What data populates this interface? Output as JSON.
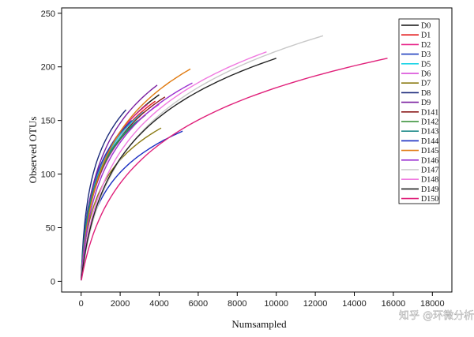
{
  "chart_data": {
    "type": "line",
    "title": "",
    "xlabel": "Numsampled",
    "ylabel": "Observed OTUs",
    "xlim": [
      -1000,
      19000
    ],
    "ylim": [
      -10,
      255
    ],
    "xticks": [
      0,
      2000,
      4000,
      6000,
      8000,
      10000,
      12000,
      14000,
      16000,
      18000
    ],
    "xtick_labels": [
      "0",
      "2000",
      "4000",
      "6000",
      "8000",
      "10000",
      "12000",
      "14000",
      "16000",
      "18000"
    ],
    "yticks": [
      0,
      50,
      100,
      150,
      200,
      250
    ],
    "ytick_labels": [
      "0",
      "50",
      "100",
      "150",
      "200",
      "250"
    ],
    "grid": false,
    "legend_position": "top-right",
    "series": [
      {
        "name": "D0",
        "color": "#111111",
        "max_x": 4000,
        "final_y": 174
      },
      {
        "name": "D1",
        "color": "#e41a1c",
        "max_x": 3800,
        "final_y": 168
      },
      {
        "name": "D2",
        "color": "#e8288c",
        "max_x": 3400,
        "final_y": 165
      },
      {
        "name": "D3",
        "color": "#1f3fbf",
        "max_x": 2600,
        "final_y": 150
      },
      {
        "name": "D5",
        "color": "#19d3e6",
        "max_x": 3200,
        "final_y": 158
      },
      {
        "name": "D6",
        "color": "#d63fd6",
        "max_x": 4000,
        "final_y": 165
      },
      {
        "name": "D7",
        "color": "#8a7a12",
        "max_x": 4100,
        "final_y": 143
      },
      {
        "name": "D8",
        "color": "#1b2a7a",
        "max_x": 2300,
        "final_y": 160
      },
      {
        "name": "D9",
        "color": "#7a1fa0",
        "max_x": 3900,
        "final_y": 183
      },
      {
        "name": "D141",
        "color": "#8b1a1a",
        "max_x": 4300,
        "final_y": 172
      },
      {
        "name": "D142",
        "color": "#2e8b2e",
        "max_x": 3300,
        "final_y": 155
      },
      {
        "name": "D143",
        "color": "#1f8a8a",
        "max_x": 2900,
        "final_y": 150
      },
      {
        "name": "D144",
        "color": "#1a2fc2",
        "max_x": 5200,
        "final_y": 140
      },
      {
        "name": "D145",
        "color": "#e07a10",
        "max_x": 5600,
        "final_y": 198
      },
      {
        "name": "D146",
        "color": "#9b30d0",
        "max_x": 5700,
        "final_y": 185
      },
      {
        "name": "D147",
        "color": "#c8c8c8",
        "max_x": 12400,
        "final_y": 229
      },
      {
        "name": "D148",
        "color": "#f07ae0",
        "max_x": 9500,
        "final_y": 214
      },
      {
        "name": "D149",
        "color": "#222222",
        "max_x": 10000,
        "final_y": 208
      },
      {
        "name": "D150",
        "color": "#e0207a",
        "max_x": 15700,
        "final_y": 208
      }
    ]
  },
  "watermark": {
    "text": "知乎 @环微分析"
  }
}
